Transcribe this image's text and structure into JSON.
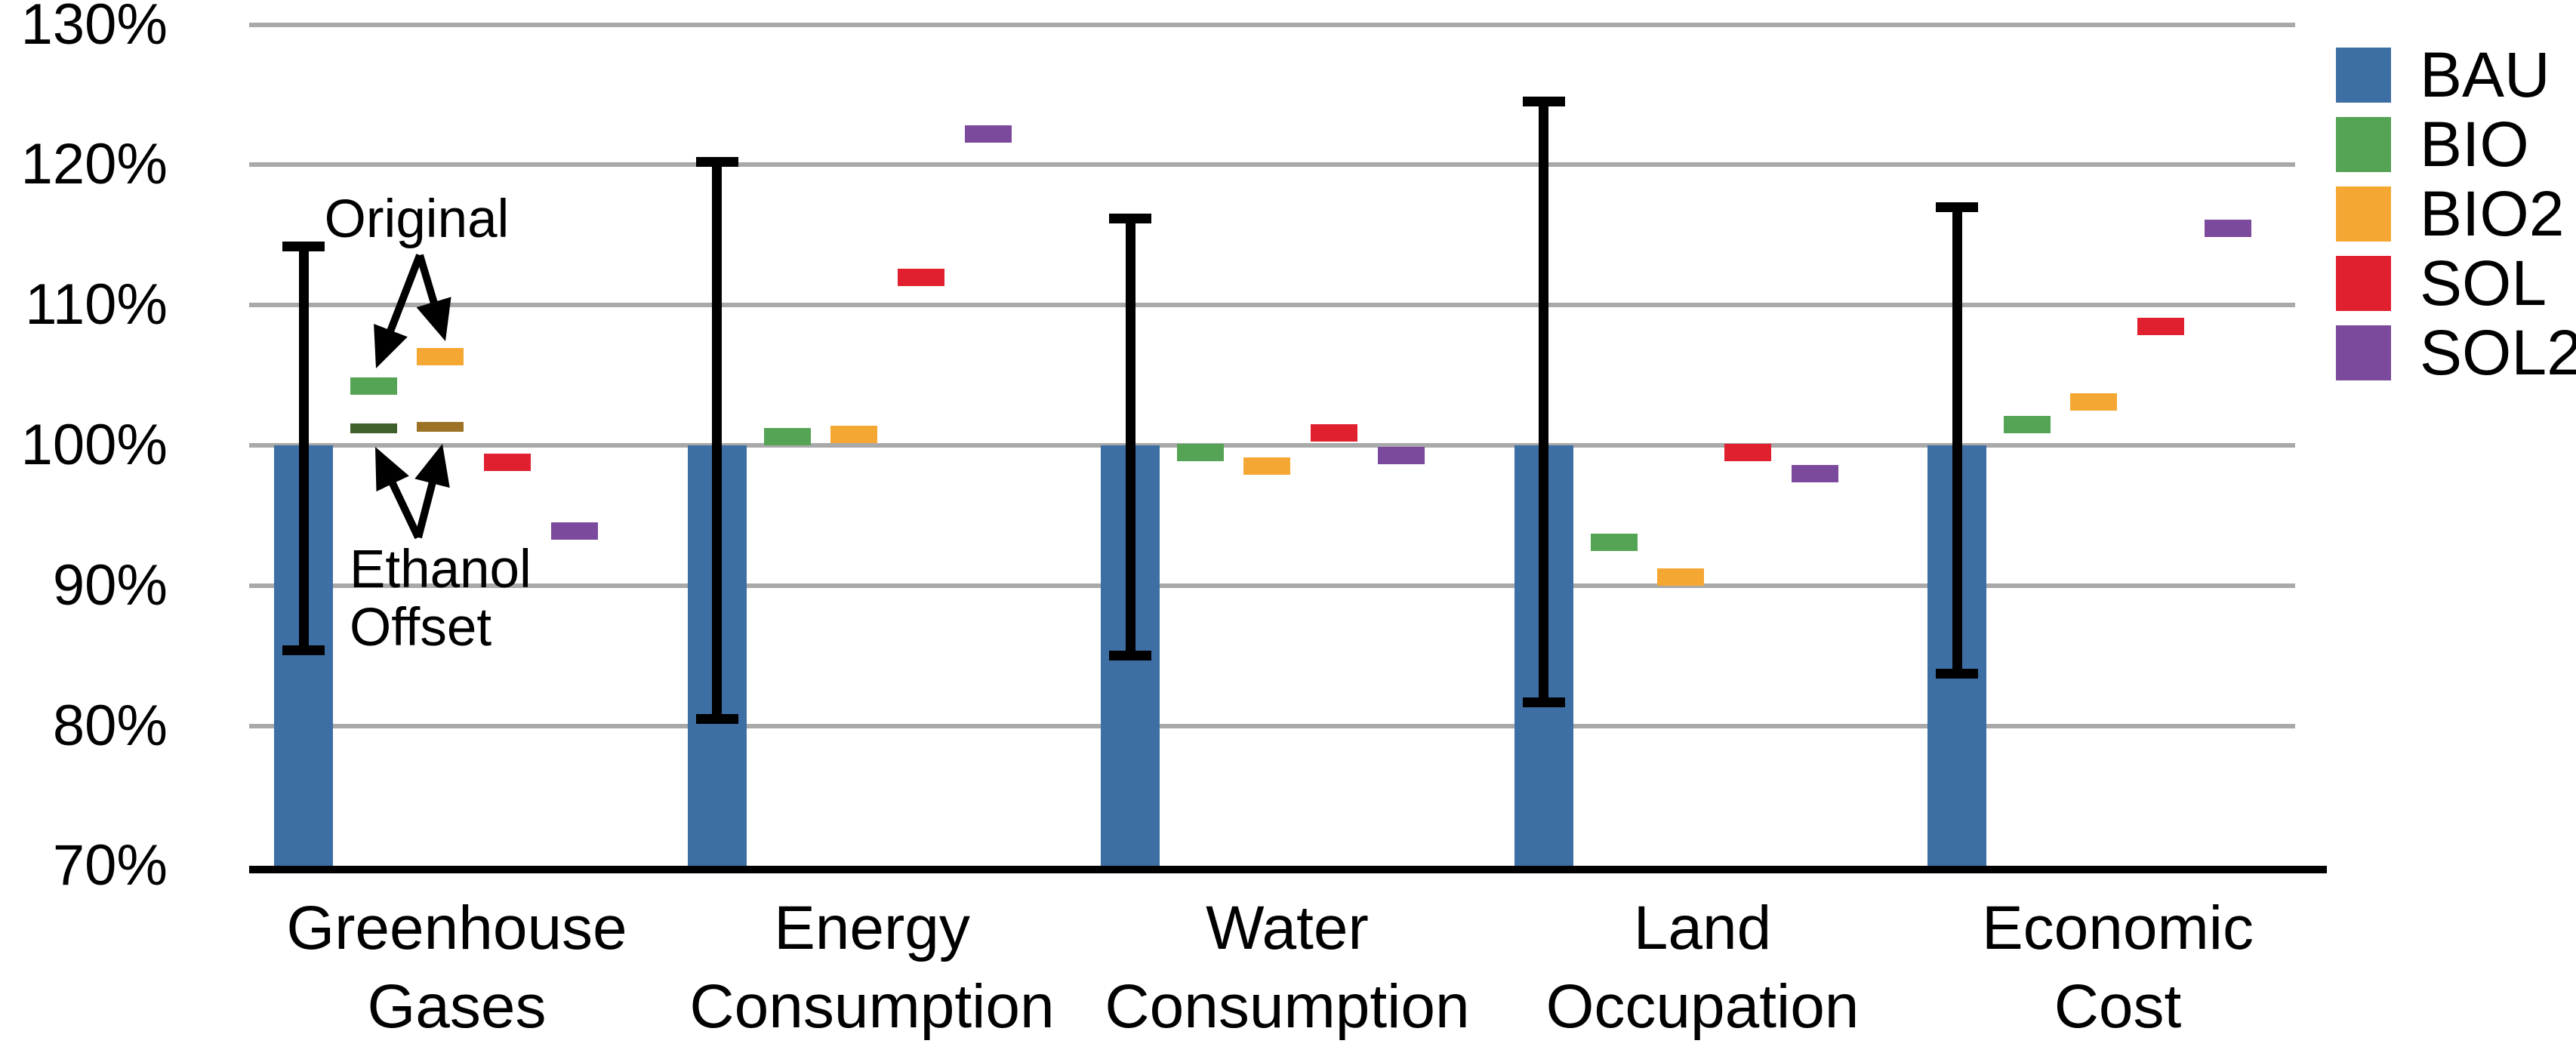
{
  "chart_data": {
    "type": "bar",
    "description_visible_text_only": "grouped bar chart with error bars and dash markers, values normalized to percent",
    "y_axis": {
      "min": 70,
      "max": 130,
      "step": 10,
      "grid": true,
      "ticks": [
        {
          "value": 130,
          "label": "130%"
        },
        {
          "value": 120,
          "label": "120%"
        },
        {
          "value": 110,
          "label": "110%"
        },
        {
          "value": 100,
          "label": "100%"
        },
        {
          "value": 90,
          "label": "90%"
        },
        {
          "value": 80,
          "label": "80%"
        },
        {
          "value": 70,
          "label": "70%"
        }
      ]
    },
    "categories": [
      {
        "label": "Greenhouse Gases",
        "lines": [
          "Greenhouse",
          "Gases"
        ]
      },
      {
        "label": "Energy Consumption",
        "lines": [
          "Energy",
          "Consumption"
        ]
      },
      {
        "label": "Water Consumption",
        "lines": [
          "Water",
          "Consumption"
        ]
      },
      {
        "label": "Land Occupation",
        "lines": [
          "Land",
          "Occupation"
        ]
      },
      {
        "label": "Economic Cost",
        "lines": [
          "Economic",
          "Cost"
        ]
      }
    ],
    "series": [
      {
        "name": "BAU",
        "style": "bar-with-error-bar",
        "color": "#3d6fa5",
        "values": [
          100,
          100,
          100,
          100,
          100
        ],
        "error_bars": [
          {
            "low": 85.4,
            "high": 114.2
          },
          {
            "low": 80.5,
            "high": 120.2
          },
          {
            "low": 85.0,
            "high": 116.2
          },
          {
            "low": 81.7,
            "high": 124.5
          },
          {
            "low": 83.7,
            "high": 117.0
          }
        ]
      },
      {
        "name": "BIO",
        "style": "dash-marker",
        "color": "#55a455",
        "values": [
          104.2,
          100.6,
          99.5,
          93.1,
          101.5
        ]
      },
      {
        "name": "BIO2",
        "style": "dash-marker",
        "color": "#f5a733",
        "values": [
          106.3,
          100.8,
          98.5,
          90.6,
          103.1
        ]
      },
      {
        "name": "SOL",
        "style": "dash-marker",
        "color": "#e0202e",
        "values": [
          98.8,
          112.0,
          100.9,
          99.5,
          108.5
        ]
      },
      {
        "name": "SOL2",
        "style": "dash-marker",
        "color": "#7c4a9c",
        "values": [
          93.9,
          122.2,
          99.3,
          98.0,
          115.5
        ]
      }
    ],
    "extra_markers": [
      {
        "name": "BIO ethanol offset",
        "series": "BIO",
        "category_index": 0,
        "value": 101.2,
        "color": "#40602b"
      },
      {
        "name": "BIO2 ethanol offset",
        "series": "BIO2",
        "category_index": 0,
        "value": 101.3,
        "color": "#9b7226"
      }
    ],
    "annotations": [
      {
        "id": "original",
        "lines": [
          "Original"
        ],
        "points_to": [
          "BIO original marker",
          "BIO2 original marker"
        ]
      },
      {
        "id": "ethanol-offset",
        "lines": [
          "Ethanol",
          "Offset"
        ],
        "points_to": [
          "BIO ethanol offset marker",
          "BIO2 ethanol offset marker"
        ]
      }
    ],
    "legend": {
      "position": "top-right",
      "entries": [
        {
          "label": "BAU",
          "color": "#3d6fa5"
        },
        {
          "label": "BIO",
          "color": "#55a455"
        },
        {
          "label": "BIO2",
          "color": "#f5a733"
        },
        {
          "label": "SOL",
          "color": "#e0202e"
        },
        {
          "label": "SOL2",
          "color": "#7c4a9c"
        }
      ]
    }
  }
}
